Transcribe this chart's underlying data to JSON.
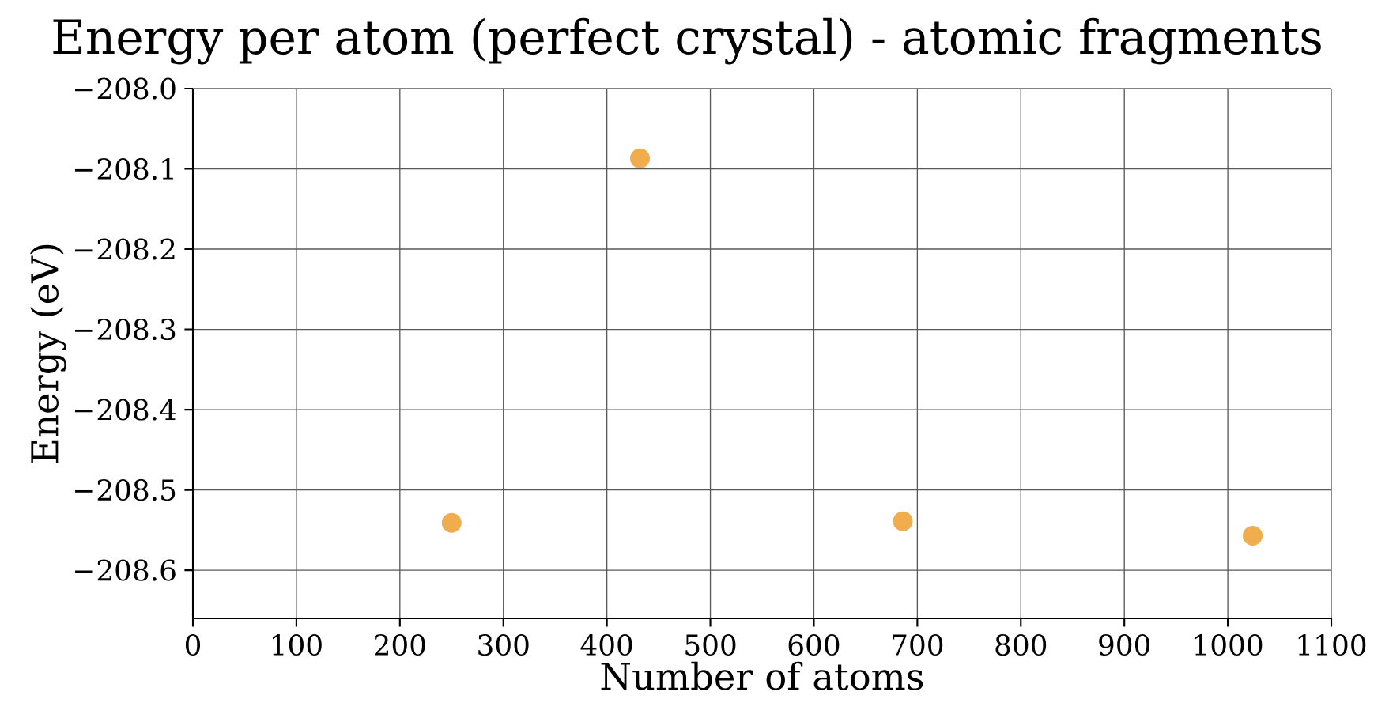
{
  "chart_data": {
    "type": "scatter",
    "title": "Energy per atom (perfect crystal) - atomic fragments",
    "xlabel": "Number of atoms",
    "ylabel": "Energy (eV)",
    "x": [
      250,
      432,
      686,
      1024
    ],
    "values": [
      -208.541,
      -208.087,
      -208.539,
      -208.557
    ],
    "color": "#f0ad4e",
    "grid": true,
    "xlim": [
      0,
      1100
    ],
    "xticks": [
      0,
      100,
      200,
      300,
      400,
      500,
      600,
      700,
      800,
      900,
      1000,
      1100
    ],
    "ylim": [
      -208.66,
      -208.0
    ],
    "yticks": [
      {
        "value": -208.6,
        "label": "−208.6"
      },
      {
        "value": -208.5,
        "label": "−208.5"
      },
      {
        "value": -208.4,
        "label": "−208.4"
      },
      {
        "value": -208.3,
        "label": "−208.3"
      },
      {
        "value": -208.2,
        "label": "−208.2"
      },
      {
        "value": -208.1,
        "label": "−208.1"
      },
      {
        "value": -208.0,
        "label": "−208.0"
      }
    ]
  }
}
